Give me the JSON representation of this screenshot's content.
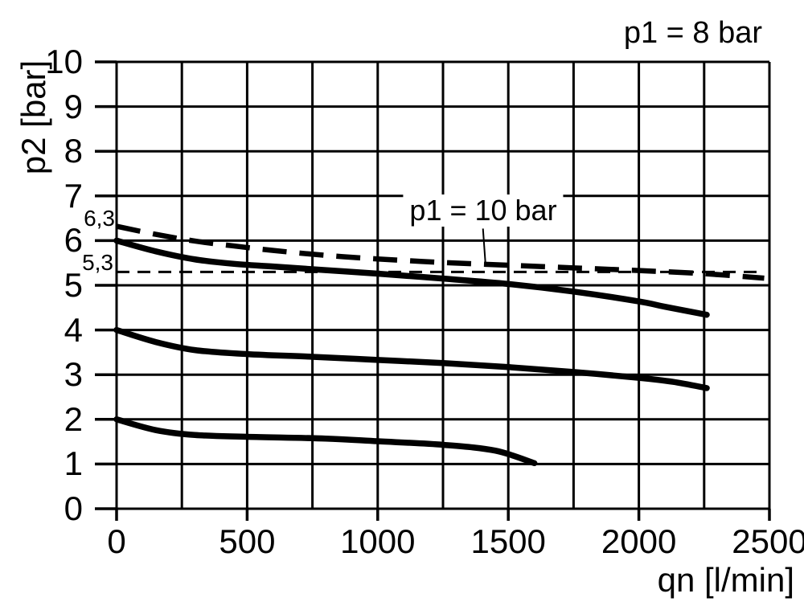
{
  "page": {
    "background": "#ffffff",
    "ink": "#000000"
  },
  "titles": {
    "p1_8_label": "p1 = 8 bar",
    "p1_10_label": "p1 = 10 bar"
  },
  "chart_data": {
    "type": "line",
    "title": "p1 = 8 bar",
    "xlabel": "qn [l/min]",
    "ylabel": "p2 [bar]",
    "xlim": [
      0,
      2500
    ],
    "ylim": [
      0,
      10
    ],
    "x_major_ticks": [
      0,
      500,
      1000,
      1500,
      2000,
      2500
    ],
    "x_minor_step": 250,
    "y_ticks": [
      0,
      1,
      2,
      3,
      4,
      5,
      6,
      7,
      8,
      9,
      10
    ],
    "grid": "on",
    "legend": "none",
    "reference_labels": [
      {
        "text": "6,3",
        "value": 6.3
      },
      {
        "text": "5,3",
        "value": 5.3
      }
    ],
    "series": [
      {
        "name": "p1 = 10 bar",
        "style": "dashed-thick",
        "points": [
          [
            0,
            6.32
          ],
          [
            150,
            6.14
          ],
          [
            300,
            5.99
          ],
          [
            450,
            5.88
          ],
          [
            600,
            5.78
          ],
          [
            800,
            5.67
          ],
          [
            1000,
            5.59
          ],
          [
            1250,
            5.51
          ],
          [
            1500,
            5.45
          ],
          [
            1750,
            5.39
          ],
          [
            2000,
            5.33
          ],
          [
            2250,
            5.26
          ],
          [
            2480,
            5.16
          ]
        ]
      },
      {
        "name": "reference 5,3 bar",
        "style": "dashed-thin",
        "points": [
          [
            0,
            5.3
          ],
          [
            2480,
            5.3
          ]
        ]
      },
      {
        "name": "p1 = 8 bar outlet curve (setpoint 6 bar)",
        "style": "solid",
        "points": [
          [
            0,
            6.0
          ],
          [
            150,
            5.76
          ],
          [
            300,
            5.58
          ],
          [
            450,
            5.48
          ],
          [
            600,
            5.42
          ],
          [
            800,
            5.34
          ],
          [
            1000,
            5.26
          ],
          [
            1250,
            5.15
          ],
          [
            1500,
            5.03
          ],
          [
            1750,
            4.86
          ],
          [
            2000,
            4.64
          ],
          [
            2100,
            4.52
          ],
          [
            2260,
            4.34
          ]
        ]
      },
      {
        "name": "outlet curve (setpoint 4 bar)",
        "style": "solid",
        "points": [
          [
            0,
            4.0
          ],
          [
            150,
            3.73
          ],
          [
            300,
            3.55
          ],
          [
            500,
            3.46
          ],
          [
            750,
            3.4
          ],
          [
            1000,
            3.33
          ],
          [
            1250,
            3.26
          ],
          [
            1500,
            3.17
          ],
          [
            1750,
            3.06
          ],
          [
            2000,
            2.93
          ],
          [
            2130,
            2.84
          ],
          [
            2260,
            2.7
          ]
        ]
      },
      {
        "name": "outlet curve (setpoint 2 bar)",
        "style": "solid",
        "points": [
          [
            0,
            2.0
          ],
          [
            150,
            1.76
          ],
          [
            300,
            1.65
          ],
          [
            500,
            1.61
          ],
          [
            800,
            1.57
          ],
          [
            1000,
            1.51
          ],
          [
            1250,
            1.43
          ],
          [
            1450,
            1.3
          ],
          [
            1600,
            1.02
          ]
        ]
      }
    ],
    "annotation": {
      "text": "p1 = 10 bar",
      "leader_from": [
        1403,
        6.27
      ],
      "leader_to": [
        1413,
        5.45
      ]
    }
  }
}
